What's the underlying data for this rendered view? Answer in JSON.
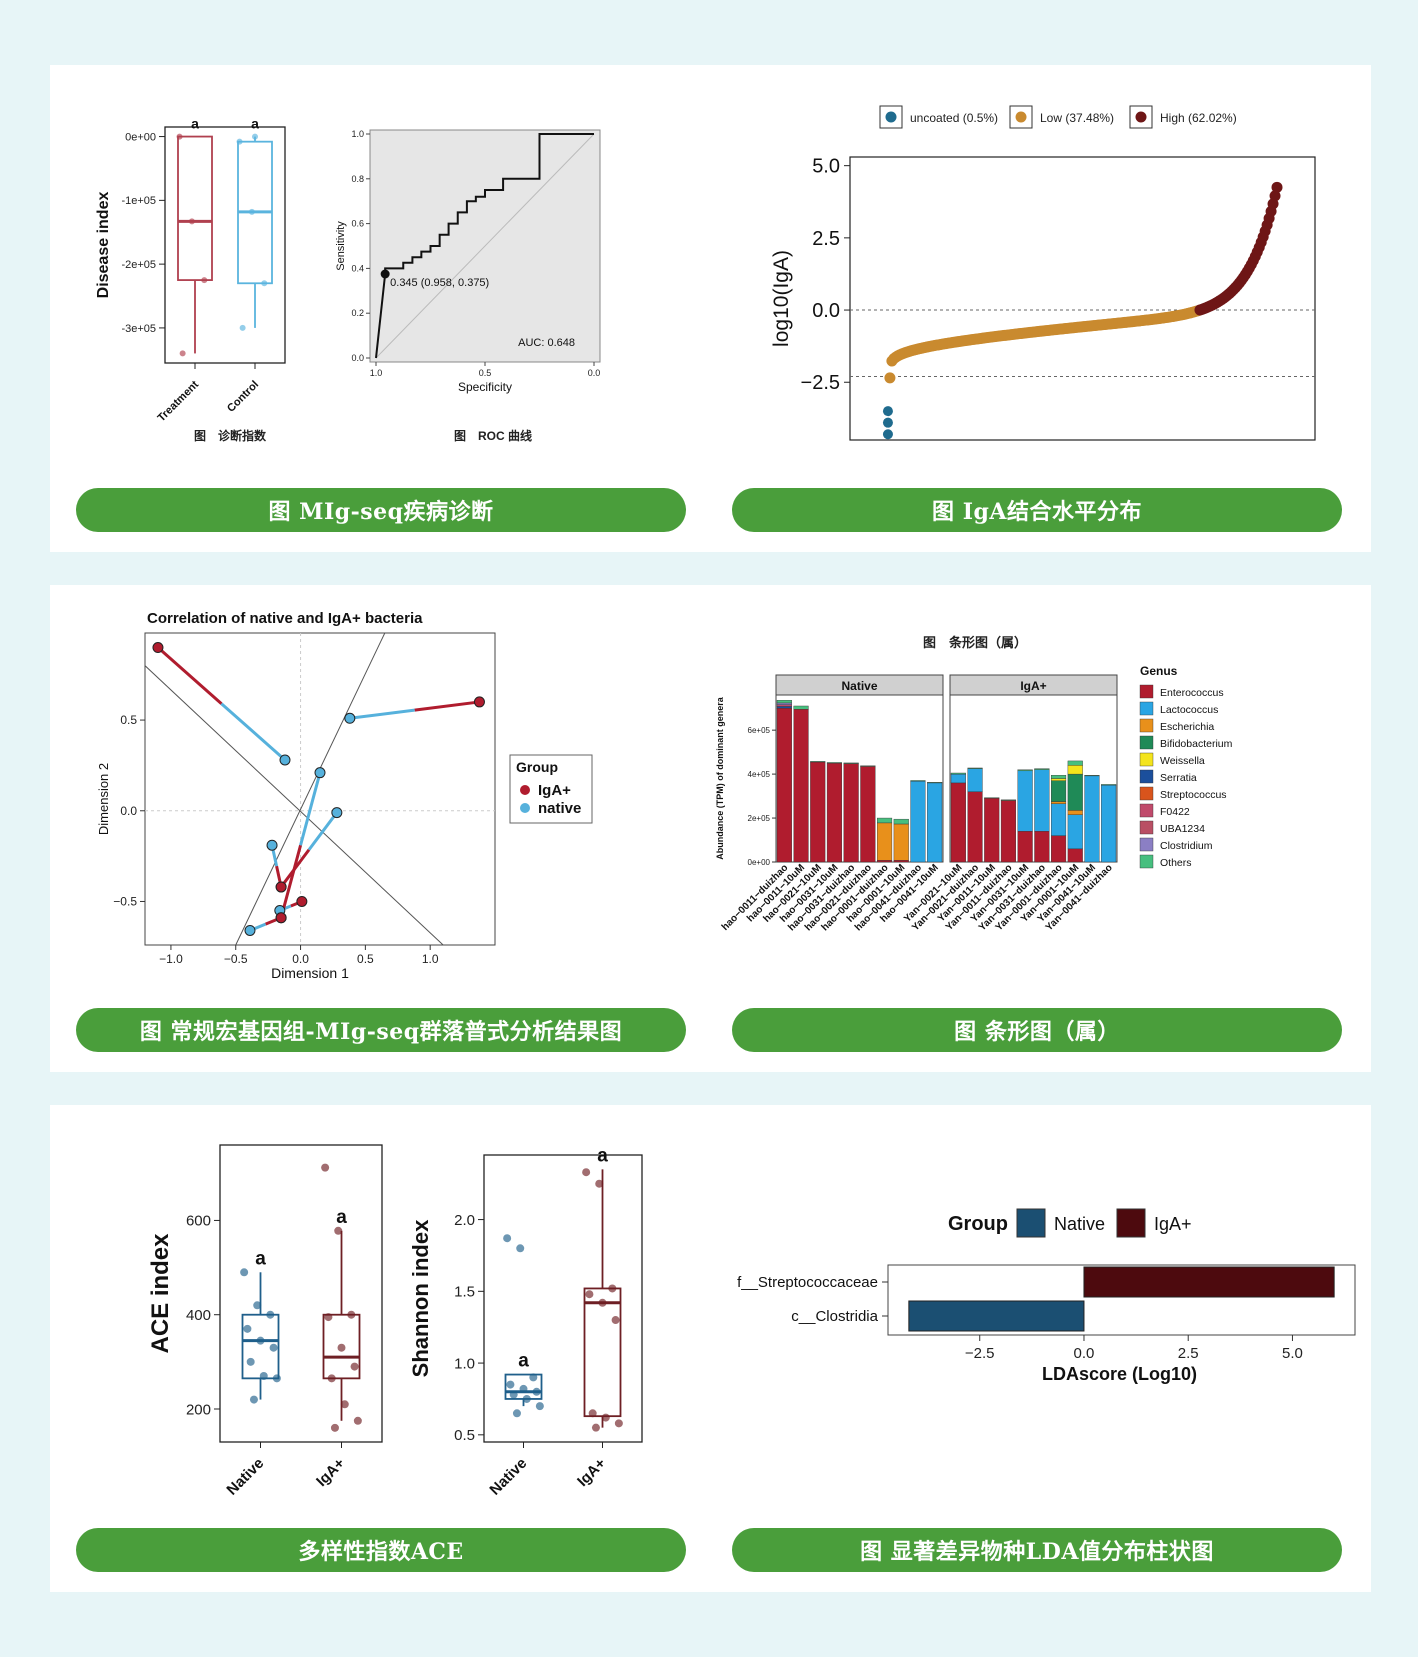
{
  "colors": {
    "background": "#e7f5f7",
    "panel": "#ffffff",
    "pill": "#4a9e3b",
    "treatment": "#b0404f",
    "control": "#5ab4de",
    "igaplus": "#b01c2e",
    "native": "#56b1dc",
    "uncoated": "#1f6b8e",
    "low": "#c98a2f",
    "high": "#6e1616",
    "lda_native": "#1b4f72",
    "lda_iga": "#4d0a0e"
  },
  "captions": {
    "p1": "图 MIg-seq疾病诊断",
    "p2": "图 IgA结合水平分布",
    "p3": "图 常规宏基因组-MIg-seq群落普式分析结果图",
    "p4": "图 条形图（属）",
    "p5": "多样性指数ACE",
    "p6": "图 显著差异物种LDA值分布柱状图"
  },
  "chart_data": [
    {
      "id": "disease_box",
      "type": "box",
      "ylabel": "Disease index",
      "yticks": [
        "0e+00",
        "-1e+05",
        "-2e+05",
        "-3e+05"
      ],
      "ylim": [
        -355000,
        15000
      ],
      "groups": [
        {
          "name": "Treatment",
          "color": "#b0404f",
          "letter": "a",
          "q1": -225000,
          "median": -133000,
          "q3": 0,
          "whisker_low": -340000,
          "whisker_high": 0,
          "points": [
            0,
            -133000,
            -225000,
            -340000
          ]
        },
        {
          "name": "Control",
          "color": "#5ab4de",
          "letter": "a",
          "q1": -230000,
          "median": -118000,
          "q3": -8000,
          "whisker_low": -300000,
          "whisker_high": 0,
          "points": [
            -8000,
            -118000,
            -230000,
            -300000,
            0
          ]
        }
      ],
      "caption": "图　诊断指数"
    },
    {
      "id": "roc",
      "type": "line",
      "xlabel": "Specificity",
      "ylabel": "Sensitivity",
      "xticks": [
        "1.0",
        "0.5",
        "0.0"
      ],
      "yticks": [
        "0.0",
        "0.2",
        "0.4",
        "0.6",
        "0.8",
        "1.0"
      ],
      "specificity": [
        1.0,
        0.958,
        0.958,
        0.875,
        0.875,
        0.833,
        0.833,
        0.792,
        0.792,
        0.75,
        0.75,
        0.708,
        0.708,
        0.667,
        0.667,
        0.625,
        0.625,
        0.583,
        0.583,
        0.542,
        0.542,
        0.5,
        0.5,
        0.417,
        0.417,
        0.25,
        0.25,
        0.0
      ],
      "sensitivity": [
        0.0,
        0.375,
        0.4,
        0.4,
        0.425,
        0.425,
        0.45,
        0.45,
        0.475,
        0.475,
        0.5,
        0.5,
        0.55,
        0.55,
        0.6,
        0.6,
        0.65,
        0.65,
        0.7,
        0.7,
        0.72,
        0.72,
        0.75,
        0.75,
        0.8,
        0.8,
        1.0,
        1.0
      ],
      "threshold_label": "0.345 (0.958, 0.375)",
      "auc_label": "AUC: 0.648",
      "caption": "图　ROC 曲线"
    },
    {
      "id": "iga_dist",
      "type": "scatter",
      "ylabel": "log10(IgA)",
      "yticks": [
        "5.0",
        "2.5",
        "0.0",
        "−2.5"
      ],
      "ytick_values": [
        5,
        2.5,
        0,
        -2.5
      ],
      "ylim": [
        -4.5,
        5.3
      ],
      "legend": [
        {
          "label": "uncoated (0.5%)",
          "color": "#1f6b8e"
        },
        {
          "label": "Low (37.48%)",
          "color": "#c98a2f"
        },
        {
          "label": "High (62.02%)",
          "color": "#6e1616"
        }
      ],
      "hlines": [
        0,
        -2.3
      ],
      "n_points": 200
    },
    {
      "id": "procrustes",
      "type": "scatter",
      "title": "Correlation of native and IgA+ bacteria",
      "xlabel": "Dimension 1",
      "ylabel": "Dimension 2",
      "xticks": [
        "−1.0",
        "−0.5",
        "0.0",
        "0.5",
        "1.0"
      ],
      "xtick_values": [
        -1,
        -0.5,
        0,
        0.5,
        1
      ],
      "yticks": [
        "0.5",
        "0.0",
        "−0.5"
      ],
      "ytick_values": [
        0.5,
        0,
        -0.5
      ],
      "xlim": [
        -1.2,
        1.5
      ],
      "ylim": [
        -0.74,
        0.98
      ],
      "legend_title": "Group",
      "legend": [
        {
          "label": "IgA+",
          "color": "#b01c2e"
        },
        {
          "label": "native",
          "color": "#56b1dc"
        }
      ],
      "pairs": [
        {
          "iga": [
            -1.1,
            0.9
          ],
          "native": [
            -0.12,
            0.28
          ]
        },
        {
          "iga": [
            1.38,
            0.6
          ],
          "native": [
            0.38,
            0.51
          ]
        },
        {
          "iga": [
            0.01,
            -0.5
          ],
          "native": [
            -0.16,
            -0.55
          ]
        },
        {
          "iga": [
            -0.15,
            -0.42
          ],
          "native": [
            0.28,
            -0.01
          ]
        },
        {
          "iga": [
            -0.15,
            -0.59
          ],
          "native": [
            0.15,
            0.21
          ]
        },
        {
          "iga": [
            -0.15,
            -0.59
          ],
          "native": [
            -0.39,
            -0.66
          ]
        },
        {
          "iga": [
            -0.15,
            -0.42
          ],
          "native": [
            -0.22,
            -0.19
          ]
        }
      ]
    },
    {
      "id": "genus_bar",
      "type": "bar",
      "title": "图　条形图（属）",
      "ylabel": "Abundance (TPM) of dominant genera",
      "yticks": [
        "0e+00",
        "2e+05",
        "4e+05",
        "6e+05"
      ],
      "ytick_values": [
        0,
        200000,
        400000,
        600000
      ],
      "ylim": [
        0,
        760000
      ],
      "facets": [
        "Native",
        "IgA+"
      ],
      "legend_title": "Genus",
      "genera": [
        {
          "name": "Enterococcus",
          "color": "#b01c2e"
        },
        {
          "name": "Lactococcus",
          "color": "#2aa5e3"
        },
        {
          "name": "Escherichia",
          "color": "#e8901b"
        },
        {
          "name": "Bifidobacterium",
          "color": "#1f8a57"
        },
        {
          "name": "Weissella",
          "color": "#f4e41c"
        },
        {
          "name": "Serratia",
          "color": "#1b4f9c"
        },
        {
          "name": "Streptococcus",
          "color": "#d9541c"
        },
        {
          "name": "F0422",
          "color": "#c04a6b"
        },
        {
          "name": "UBA1234",
          "color": "#b94f64"
        },
        {
          "name": "Clostridium",
          "color": "#8b7fc4"
        },
        {
          "name": "Others",
          "color": "#47bf7f"
        }
      ],
      "samples": [
        {
          "name": "hao−0011−duizhao",
          "facet": 0,
          "values": [
            700000,
            0,
            0,
            0,
            0,
            8000,
            0,
            8000,
            0,
            8000,
            12000
          ]
        },
        {
          "name": "hao−0011−10uM",
          "facet": 0,
          "values": [
            695000,
            0,
            0,
            0,
            0,
            0,
            0,
            0,
            0,
            0,
            15000
          ]
        },
        {
          "name": "hao−0021−10uM",
          "facet": 0,
          "values": [
            455000,
            0,
            0,
            0,
            0,
            0,
            0,
            0,
            0,
            0,
            3000
          ]
        },
        {
          "name": "hao−0031−10uM",
          "facet": 0,
          "values": [
            450000,
            0,
            0,
            0,
            0,
            0,
            0,
            0,
            0,
            0,
            3000
          ]
        },
        {
          "name": "hao−0031−duizhao",
          "facet": 0,
          "values": [
            448000,
            0,
            0,
            0,
            0,
            0,
            0,
            0,
            0,
            0,
            3000
          ]
        },
        {
          "name": "hao−0021−duizhao",
          "facet": 0,
          "values": [
            435000,
            0,
            0,
            0,
            0,
            0,
            0,
            0,
            0,
            0,
            3000
          ]
        },
        {
          "name": "hao−0001−duizhao",
          "facet": 0,
          "values": [
            8000,
            0,
            170000,
            0,
            0,
            0,
            0,
            0,
            0,
            0,
            22000
          ]
        },
        {
          "name": "hao−0001−10uM",
          "facet": 0,
          "values": [
            8000,
            0,
            165000,
            0,
            0,
            0,
            0,
            0,
            0,
            0,
            22000
          ]
        },
        {
          "name": "hao−0041−duizhao",
          "facet": 0,
          "values": [
            0,
            368000,
            0,
            0,
            0,
            0,
            0,
            0,
            0,
            0,
            3000
          ]
        },
        {
          "name": "hao−0041−10uM",
          "facet": 0,
          "values": [
            0,
            360000,
            0,
            0,
            0,
            0,
            0,
            0,
            0,
            0,
            3000
          ]
        },
        {
          "name": "Yan−0021−10uM",
          "facet": 1,
          "values": [
            360000,
            40000,
            0,
            0,
            0,
            0,
            0,
            0,
            0,
            0,
            5000
          ]
        },
        {
          "name": "Yan−0021−duizhao",
          "facet": 1,
          "values": [
            320000,
            105000,
            0,
            0,
            0,
            0,
            0,
            0,
            0,
            0,
            3000
          ]
        },
        {
          "name": "Yan−0011−10uM",
          "facet": 1,
          "values": [
            290000,
            0,
            0,
            0,
            0,
            0,
            0,
            0,
            0,
            0,
            3000
          ]
        },
        {
          "name": "Yan−0011−duizhao",
          "facet": 1,
          "values": [
            280000,
            0,
            0,
            0,
            0,
            0,
            0,
            0,
            0,
            0,
            3000
          ]
        },
        {
          "name": "Yan−0031−10uM",
          "facet": 1,
          "values": [
            140000,
            275000,
            0,
            0,
            0,
            0,
            0,
            0,
            0,
            0,
            5000
          ]
        },
        {
          "name": "Yan−0031−duizhao",
          "facet": 1,
          "values": [
            140000,
            280000,
            0,
            0,
            0,
            0,
            0,
            0,
            0,
            0,
            5000
          ]
        },
        {
          "name": "Yan−0001−duizhao",
          "facet": 1,
          "values": [
            120000,
            145000,
            10000,
            95000,
            10000,
            0,
            0,
            0,
            0,
            0,
            15000
          ]
        },
        {
          "name": "Yan−0001−10uM",
          "facet": 1,
          "values": [
            60000,
            155000,
            20000,
            165000,
            40000,
            0,
            0,
            0,
            0,
            0,
            20000
          ]
        },
        {
          "name": "Yan−0041−10uM",
          "facet": 1,
          "values": [
            0,
            392000,
            0,
            0,
            0,
            0,
            0,
            0,
            0,
            0,
            3000
          ]
        },
        {
          "name": "Yan−0041−duizhao",
          "facet": 1,
          "values": [
            0,
            350000,
            0,
            0,
            0,
            0,
            0,
            0,
            0,
            0,
            3000
          ]
        }
      ]
    },
    {
      "id": "ace_box",
      "type": "box",
      "ylabel": "ACE index",
      "yticks": [
        "200",
        "400",
        "600"
      ],
      "ytick_values": [
        200,
        400,
        600
      ],
      "ylim": [
        130,
        760
      ],
      "groups": [
        {
          "name": "Native",
          "color": "#1f5f8b",
          "letter": "a",
          "q1": 265,
          "median": 345,
          "q3": 400,
          "whisker_low": 220,
          "whisker_high": 490,
          "points": [
            490,
            420,
            400,
            370,
            345,
            330,
            300,
            270,
            265,
            220
          ]
        },
        {
          "name": "IgA+",
          "color": "#6e1f24",
          "letter": "a",
          "q1": 265,
          "median": 310,
          "q3": 400,
          "whisker_low": 175,
          "whisker_high": 578,
          "points": [
            712,
            578,
            400,
            395,
            330,
            290,
            265,
            210,
            175,
            160
          ]
        }
      ]
    },
    {
      "id": "shannon_box",
      "type": "box",
      "ylabel": "Shannon index",
      "yticks": [
        "0.5",
        "1.0",
        "1.5",
        "2.0"
      ],
      "ytick_values": [
        0.5,
        1,
        1.5,
        2
      ],
      "ylim": [
        0.45,
        2.45
      ],
      "groups": [
        {
          "name": "Native",
          "color": "#1f5f8b",
          "letter": "a",
          "q1": 0.75,
          "median": 0.8,
          "q3": 0.92,
          "whisker_low": 0.7,
          "whisker_high": 0.92,
          "points": [
            1.87,
            1.8,
            0.9,
            0.85,
            0.82,
            0.8,
            0.78,
            0.75,
            0.7,
            0.65
          ]
        },
        {
          "name": "IgA+",
          "color": "#6e1f24",
          "letter": "a",
          "q1": 0.63,
          "median": 1.42,
          "q3": 1.52,
          "whisker_low": 0.55,
          "whisker_high": 2.35,
          "points": [
            2.33,
            2.25,
            1.52,
            1.48,
            1.42,
            1.3,
            0.65,
            0.62,
            0.58,
            0.55
          ]
        }
      ]
    },
    {
      "id": "lda",
      "type": "bar",
      "xlabel": "LDAscore (Log10)",
      "xticks": [
        "−2.5",
        "0.0",
        "2.5",
        "5.0"
      ],
      "xtick_values": [
        -2.5,
        0,
        2.5,
        5
      ],
      "xlim": [
        -4.7,
        6.5
      ],
      "legend_title": "Group",
      "legend": [
        {
          "label": "Native",
          "color": "#1b4f72"
        },
        {
          "label": "IgA+",
          "color": "#4d0a0e"
        }
      ],
      "bars": [
        {
          "label": "f__Streptococcaceae",
          "value": 6.0,
          "group": "IgA+"
        },
        {
          "label": "c__Clostridia",
          "value": -4.2,
          "group": "Native"
        }
      ]
    }
  ]
}
